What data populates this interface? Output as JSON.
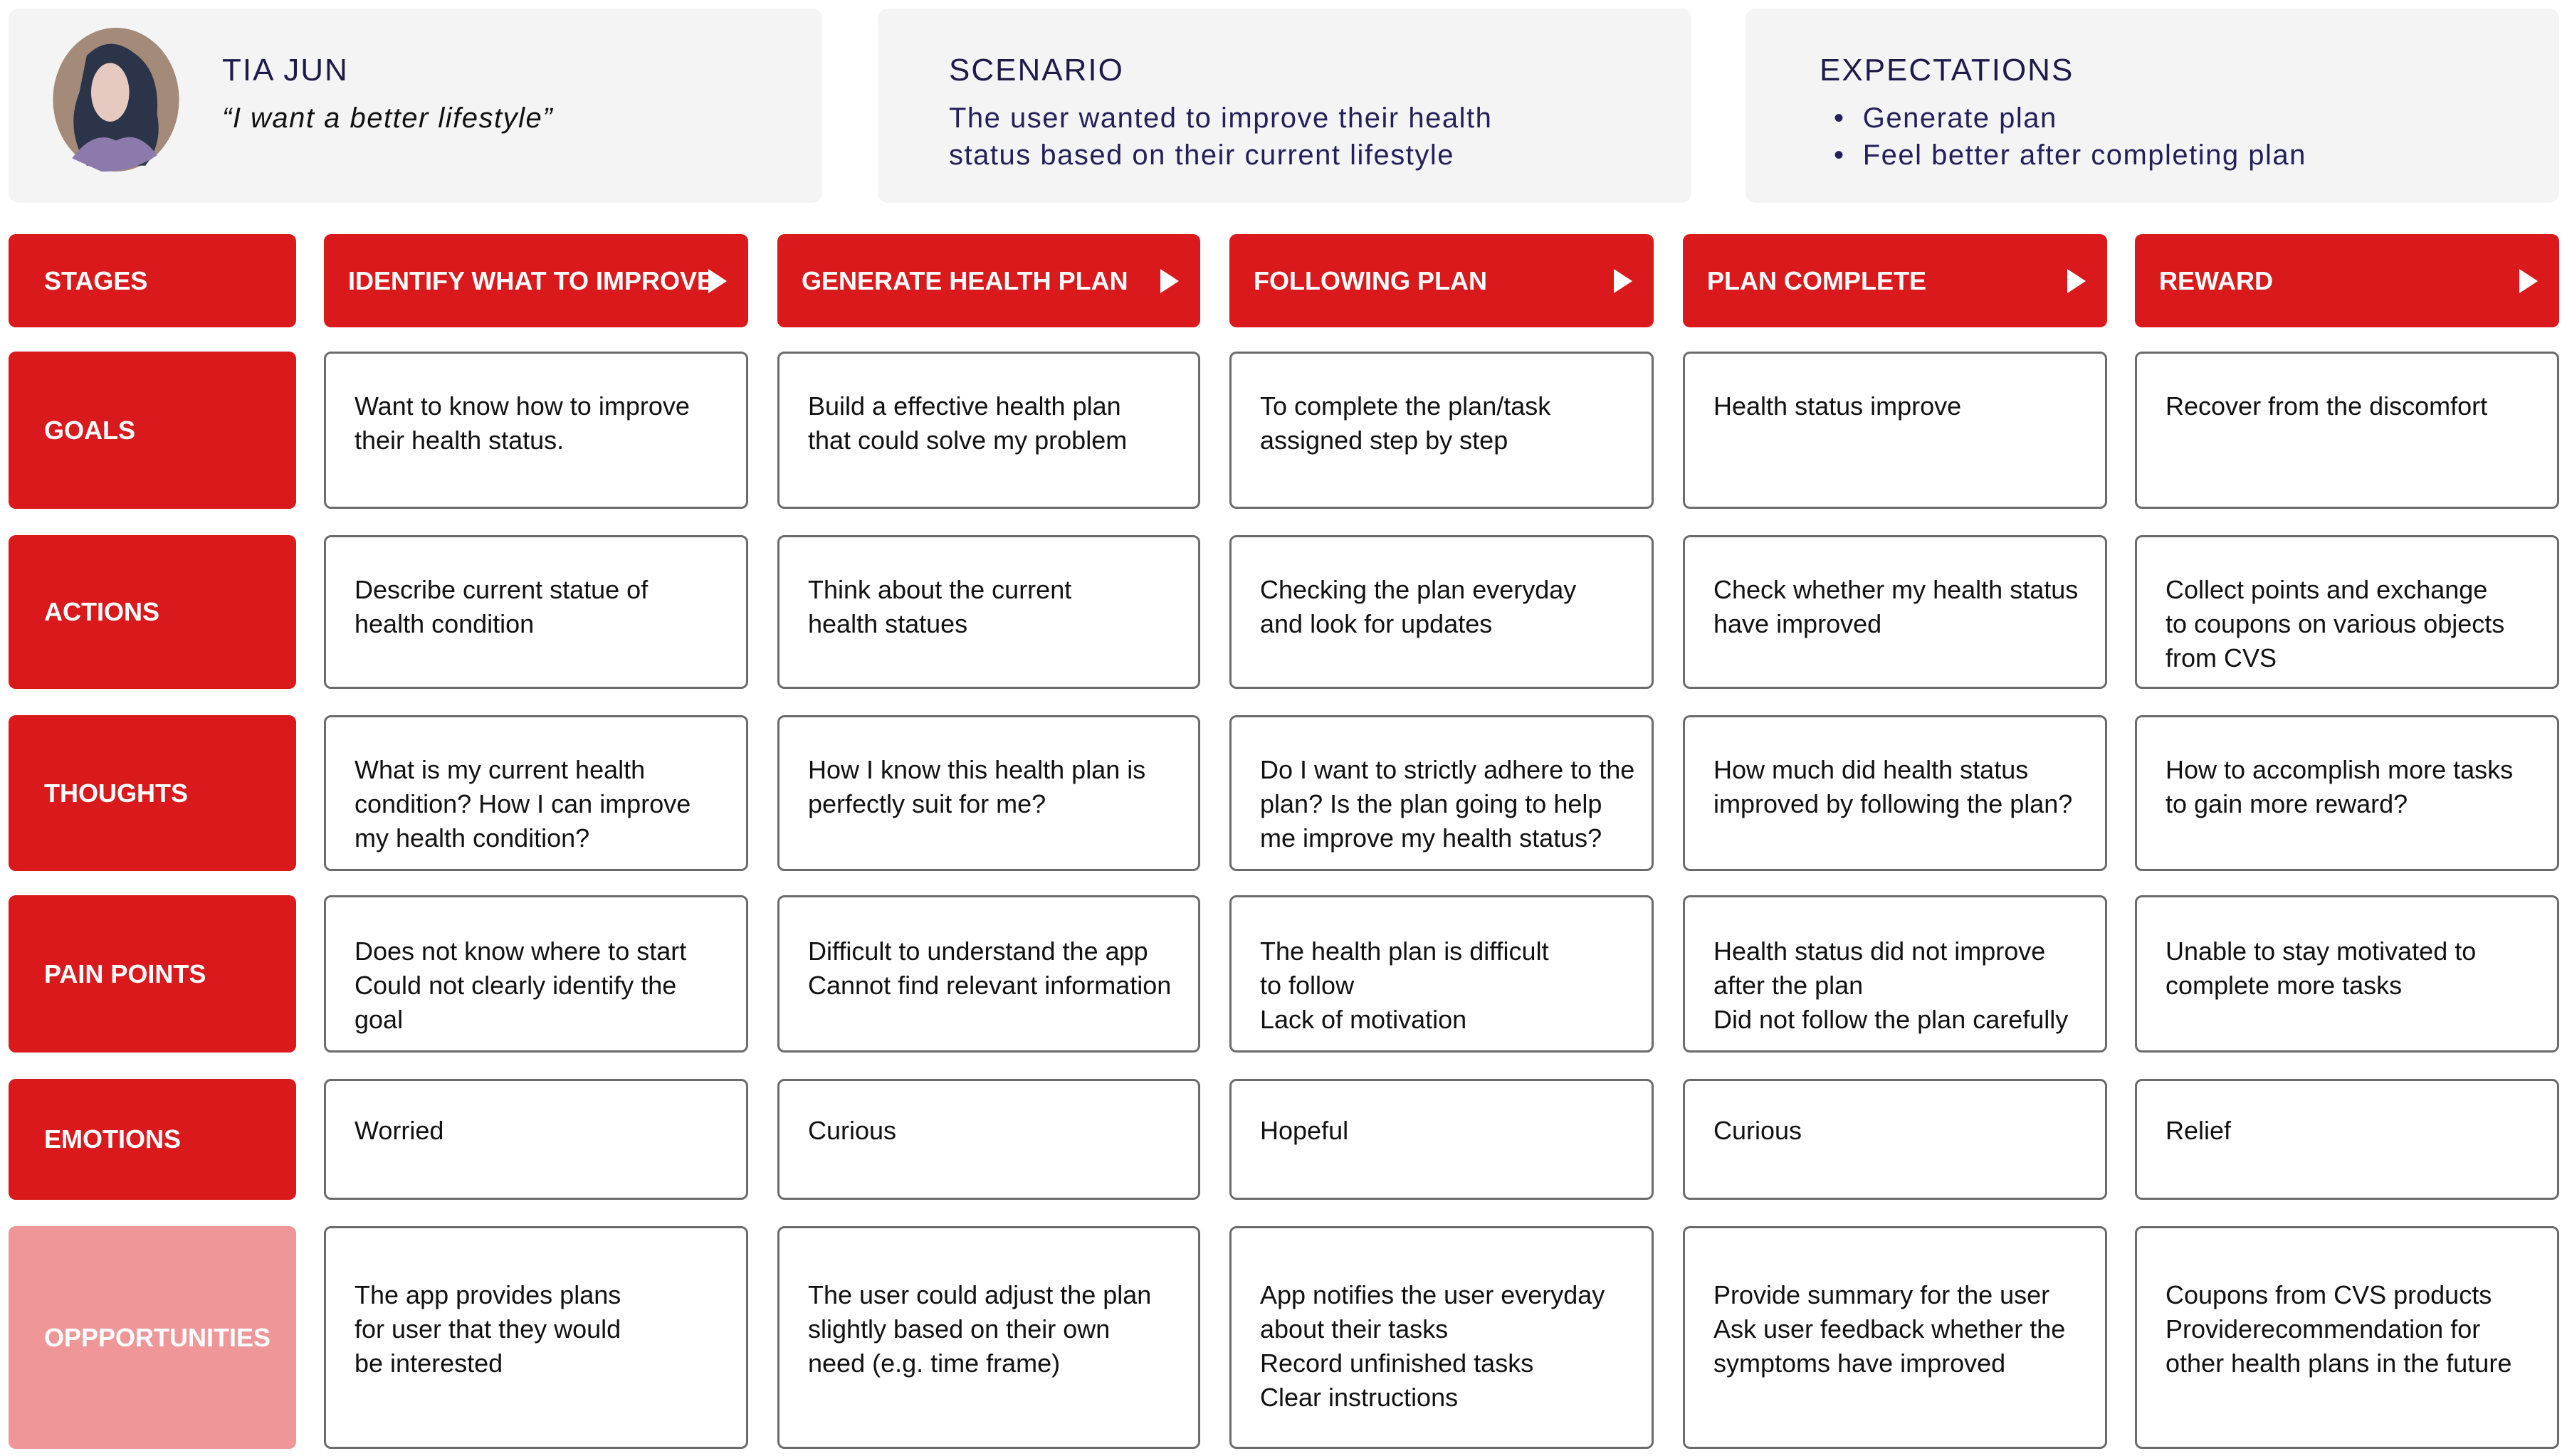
{
  "persona": {
    "name": "TIA JUN",
    "quote": "“I want a better lifestyle”"
  },
  "scenario": {
    "title": "SCENARIO",
    "text": "The user wanted to improve their health\nstatus based on their current lifestyle"
  },
  "expectations": {
    "title": "EXPECTATIONS",
    "items": [
      "Generate plan",
      "Feel better after completing plan"
    ]
  },
  "stages_label": "STAGES",
  "stages": [
    "IDENTIFY WHAT TO IMPROVE",
    "GENERATE HEALTH PLAN",
    "FOLLOWING PLAN",
    "PLAN COMPLETE",
    "REWARD"
  ],
  "colors": {
    "accent": "#da191d",
    "opportunities": "#ee9698"
  },
  "rows": [
    {
      "label": "GOALS",
      "cells": [
        "Want to know how to improve\ntheir health status.",
        "Build a effective health plan\nthat could solve my problem",
        "To complete the plan/task\nassigned step by step",
        "Health status improve",
        "Recover from the discomfort"
      ]
    },
    {
      "label": "ACTIONS",
      "cells": [
        "Describe current statue of\nhealth condition",
        "Think about the current\nhealth statues",
        "Checking the plan everyday\nand look for updates",
        "Check whether my health status\nhave improved",
        "Collect points and exchange\nto coupons on various objects\nfrom CVS"
      ]
    },
    {
      "label": "THOUGHTS",
      "cells": [
        "What is my current health\ncondition? How I can improve\nmy health condition?",
        "How I know this health plan is\nperfectly suit for me?",
        "Do I want to strictly adhere to the\nplan? Is the plan going to help\nme improve my health status?",
        "How much did health status\nimproved by following the plan?",
        "How to accomplish more tasks\nto gain more reward?"
      ]
    },
    {
      "label": "PAIN POINTS",
      "cells": [
        "Does not know where to start\nCould not clearly identify the goal",
        "Difficult to understand the app\nCannot find relevant information",
        "The health plan is difficult\nto follow\nLack of motivation",
        "Health status did not improve\nafter the plan\nDid not follow the plan carefully",
        "Unable to stay motivated to\ncomplete more tasks"
      ]
    },
    {
      "label": "EMOTIONS",
      "cells": [
        "Worried",
        "Curious",
        "Hopeful",
        "Curious",
        "Relief"
      ]
    },
    {
      "label": "OPPPORTUNITIES",
      "cells": [
        "The app provides plans\nfor user that they would\nbe interested",
        "The user could adjust the plan\nslightly based on their own\nneed (e.g. time frame)",
        "App notifies the user everyday\nabout their tasks\nRecord unfinished tasks\nClear instructions",
        "Provide summary for the user\nAsk user feedback whether the\nsymptoms have improved",
        "Coupons from CVS products\nProviderecommendation for\nother health plans in the future"
      ]
    }
  ]
}
